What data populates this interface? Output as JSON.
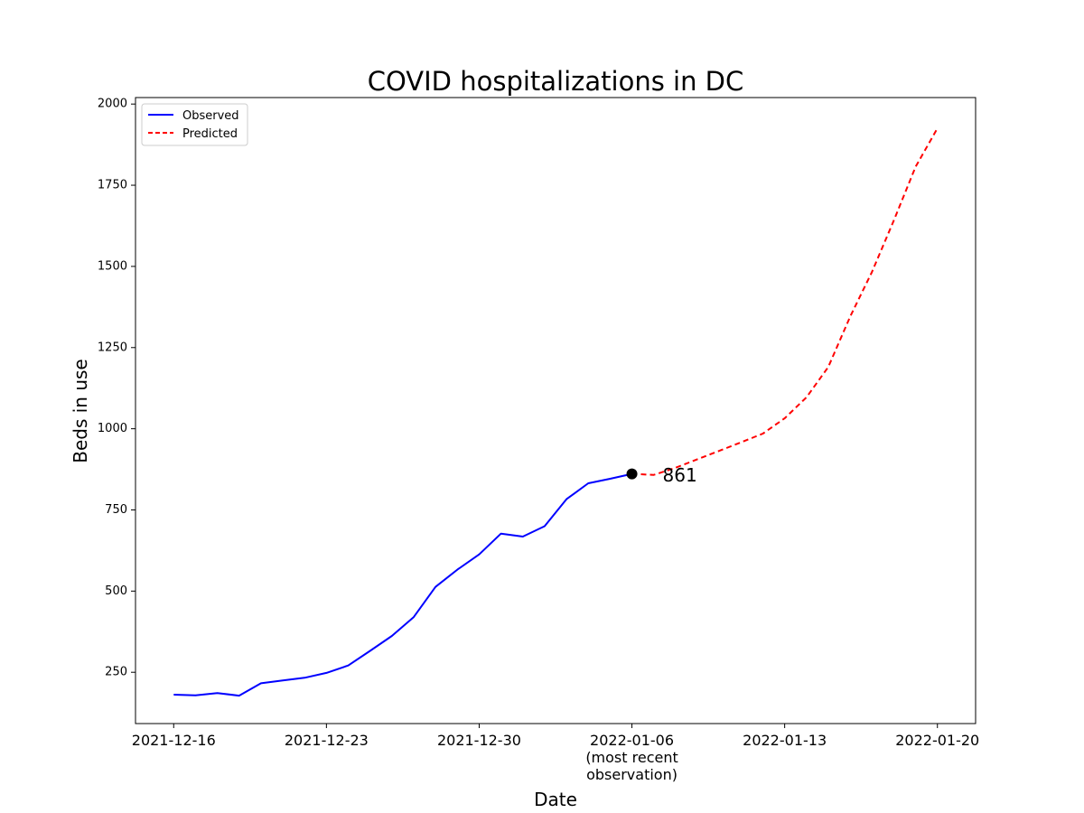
{
  "chart_data": {
    "type": "line",
    "title": "COVID hospitalizations in DC",
    "xlabel": "Date",
    "ylabel": "Beds in use",
    "ylim": [
      92,
      2020
    ],
    "xlim": [
      "2021-12-14T06:00",
      "2022-01-21T18:00"
    ],
    "x_ticks": [
      {
        "date": "2021-12-16",
        "label": [
          "2021-12-16"
        ]
      },
      {
        "date": "2021-12-23",
        "label": [
          "2021-12-23"
        ]
      },
      {
        "date": "2021-12-30",
        "label": [
          "2021-12-30"
        ]
      },
      {
        "date": "2022-01-06",
        "label": [
          "2022-01-06",
          "(most recent",
          "observation)"
        ]
      },
      {
        "date": "2022-01-13",
        "label": [
          "2022-01-13"
        ]
      },
      {
        "date": "2022-01-20",
        "label": [
          "2022-01-20"
        ]
      }
    ],
    "y_ticks": [
      250,
      500,
      750,
      1000,
      1250,
      1500,
      1750,
      2000
    ],
    "grid": false,
    "legend": "top-left",
    "series": [
      {
        "name": "Observed",
        "color": "#0000ff",
        "style": "solid",
        "points": [
          [
            "2021-12-16",
            181
          ],
          [
            "2021-12-17",
            179
          ],
          [
            "2021-12-18",
            186
          ],
          [
            "2021-12-19",
            178
          ],
          [
            "2021-12-20",
            216
          ],
          [
            "2021-12-21",
            225
          ],
          [
            "2021-12-22",
            233
          ],
          [
            "2021-12-23",
            248
          ],
          [
            "2021-12-24",
            271
          ],
          [
            "2021-12-25",
            316
          ],
          [
            "2021-12-26",
            362
          ],
          [
            "2021-12-27",
            420
          ],
          [
            "2021-12-28",
            513
          ],
          [
            "2021-12-29",
            566
          ],
          [
            "2021-12-30",
            613
          ],
          [
            "2021-12-31",
            677
          ],
          [
            "2022-01-01",
            668
          ],
          [
            "2022-01-02",
            700
          ],
          [
            "2022-01-03",
            783
          ],
          [
            "2022-01-04",
            832
          ],
          [
            "2022-01-05",
            846
          ],
          [
            "2022-01-06",
            861
          ]
        ]
      },
      {
        "name": "Predicted",
        "color": "#ff0000",
        "style": "dashed",
        "points": [
          [
            "2022-01-06",
            861
          ],
          [
            "2022-01-07",
            858
          ],
          [
            "2022-01-08",
            880
          ],
          [
            "2022-01-09",
            906
          ],
          [
            "2022-01-10",
            932
          ],
          [
            "2022-01-11",
            958
          ],
          [
            "2022-01-12",
            985
          ],
          [
            "2022-01-13",
            1032
          ],
          [
            "2022-01-14",
            1097
          ],
          [
            "2022-01-15",
            1190
          ],
          [
            "2022-01-16",
            1345
          ],
          [
            "2022-01-17",
            1483
          ],
          [
            "2022-01-18",
            1641
          ],
          [
            "2022-01-19",
            1807
          ],
          [
            "2022-01-20",
            1925
          ]
        ]
      }
    ],
    "annotation": {
      "date": "2022-01-06",
      "value": 861,
      "text": "861",
      "marker": "#000000"
    }
  }
}
